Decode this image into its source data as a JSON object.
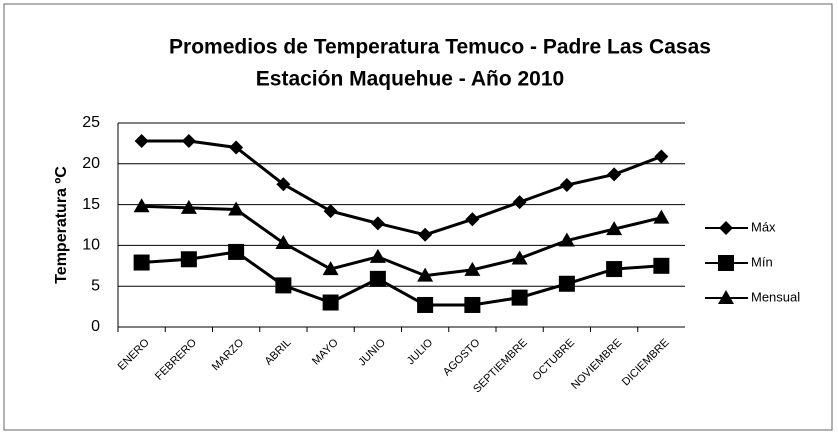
{
  "chart_data": {
    "type": "line",
    "title": "Promedios de Temperatura Temuco - Padre Las Casas",
    "subtitle": "Estación Maquehue - Año 2010",
    "y_label": "Temperatura ºC",
    "categories": [
      "ENERO",
      "FEBRERO",
      "MARZO",
      "ABRIL",
      "MAYO",
      "JUNIO",
      "JULIO",
      "AGOSTO",
      "SEPTIEMBRE",
      "OCTUBRE",
      "NOVIEMBRE",
      "DICIEMBRE"
    ],
    "series": [
      {
        "name": "Máx",
        "color": "#000000",
        "marker": "diamond",
        "values": [
          22.8,
          22.8,
          22,
          17.5,
          14.2,
          12.7,
          11.3,
          13.2,
          15.3,
          17.4,
          18.7,
          20.9
        ]
      },
      {
        "name": "Mín",
        "color": "#000000",
        "marker": "square",
        "values": [
          7.9,
          8.3,
          9.2,
          5.1,
          3.0,
          5.9,
          2.7,
          2.7,
          3.6,
          5.3,
          7.1,
          7.5
        ]
      },
      {
        "name": "Mensual",
        "color": "#000000",
        "marker": "triangle",
        "values": [
          14.8,
          14.6,
          14.4,
          10.3,
          7.1,
          8.6,
          6.3,
          7.0,
          8.4,
          10.6,
          12.0,
          13.4
        ]
      }
    ],
    "ylim": [
      0,
      25
    ],
    "yticks": [
      0,
      5,
      10,
      15,
      20,
      25
    ],
    "grid": true,
    "legend": "right"
  }
}
